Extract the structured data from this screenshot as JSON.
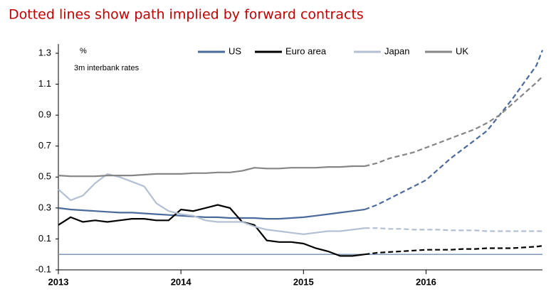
{
  "chart_data": {
    "type": "line",
    "title": "Dotted lines show path implied by forward contracts",
    "annotations": [
      "%",
      "3m interbank rates"
    ],
    "x": [
      2013.0,
      2013.1,
      2013.2,
      2013.3,
      2013.4,
      2013.5,
      2013.6,
      2013.7,
      2013.8,
      2013.9,
      2014.0,
      2014.1,
      2014.2,
      2014.3,
      2014.4,
      2014.5,
      2014.6,
      2014.7,
      2014.8,
      2014.9,
      2015.0,
      2015.1,
      2015.2,
      2015.3,
      2015.4,
      2015.5,
      2015.6,
      2015.7,
      2015.8,
      2015.9,
      2016.0,
      2016.1,
      2016.2,
      2016.3,
      2016.4,
      2016.5,
      2016.6,
      2016.7,
      2016.8,
      2016.9,
      2016.95
    ],
    "series": [
      {
        "name": "US",
        "color": "#4a6a9c",
        "values": [
          0.3,
          0.29,
          0.285,
          0.28,
          0.275,
          0.27,
          0.27,
          0.265,
          0.26,
          0.255,
          0.25,
          0.245,
          0.24,
          0.24,
          0.235,
          0.235,
          0.235,
          0.23,
          0.23,
          0.235,
          0.24,
          0.25,
          0.26,
          0.27,
          0.28,
          0.29,
          null,
          null,
          null,
          null,
          null,
          null,
          null,
          null,
          null,
          null,
          null,
          null,
          null,
          null,
          null
        ],
        "forward": [
          null,
          null,
          null,
          null,
          null,
          null,
          null,
          null,
          null,
          null,
          null,
          null,
          null,
          null,
          null,
          null,
          null,
          null,
          null,
          null,
          null,
          null,
          null,
          null,
          null,
          0.29,
          0.32,
          0.36,
          0.4,
          0.44,
          0.48,
          0.55,
          0.62,
          0.68,
          0.74,
          0.8,
          0.9,
          1.0,
          1.11,
          1.22,
          1.32
        ]
      },
      {
        "name": "Euro area",
        "color": "#000000",
        "values": [
          0.19,
          0.24,
          0.21,
          0.22,
          0.21,
          0.22,
          0.23,
          0.23,
          0.22,
          0.22,
          0.29,
          0.28,
          0.3,
          0.32,
          0.3,
          0.21,
          0.19,
          0.09,
          0.08,
          0.08,
          0.07,
          0.04,
          0.02,
          -0.01,
          -0.01,
          0.0,
          null,
          null,
          null,
          null,
          null,
          null,
          null,
          null,
          null,
          null,
          null,
          null,
          null,
          null,
          null
        ],
        "forward": [
          null,
          null,
          null,
          null,
          null,
          null,
          null,
          null,
          null,
          null,
          null,
          null,
          null,
          null,
          null,
          null,
          null,
          null,
          null,
          null,
          null,
          null,
          null,
          null,
          null,
          0.0,
          0.01,
          0.015,
          0.02,
          0.025,
          0.03,
          0.03,
          0.03,
          0.035,
          0.035,
          0.04,
          0.04,
          0.04,
          0.045,
          0.05,
          0.055
        ]
      },
      {
        "name": "Japan",
        "color": "#b3c0d4",
        "values": [
          0.42,
          0.35,
          0.38,
          0.46,
          0.52,
          0.5,
          0.47,
          0.44,
          0.33,
          0.28,
          0.26,
          0.25,
          0.22,
          0.21,
          0.21,
          0.21,
          0.18,
          0.16,
          0.15,
          0.14,
          0.13,
          0.14,
          0.15,
          0.15,
          0.16,
          0.17,
          null,
          null,
          null,
          null,
          null,
          null,
          null,
          null,
          null,
          null,
          null,
          null,
          null,
          null,
          null
        ],
        "forward": [
          null,
          null,
          null,
          null,
          null,
          null,
          null,
          null,
          null,
          null,
          null,
          null,
          null,
          null,
          null,
          null,
          null,
          null,
          null,
          null,
          null,
          null,
          null,
          null,
          null,
          0.17,
          0.17,
          0.165,
          0.165,
          0.16,
          0.16,
          0.16,
          0.155,
          0.155,
          0.155,
          0.15,
          0.15,
          0.15,
          0.15,
          0.15,
          0.15
        ]
      },
      {
        "name": "UK",
        "color": "#858585",
        "values": [
          0.51,
          0.505,
          0.505,
          0.505,
          0.51,
          0.51,
          0.51,
          0.515,
          0.52,
          0.52,
          0.52,
          0.525,
          0.525,
          0.53,
          0.53,
          0.54,
          0.56,
          0.555,
          0.555,
          0.56,
          0.56,
          0.56,
          0.565,
          0.565,
          0.57,
          0.57,
          null,
          null,
          null,
          null,
          null,
          null,
          null,
          null,
          null,
          null,
          null,
          null,
          null,
          null,
          null
        ],
        "forward": [
          null,
          null,
          null,
          null,
          null,
          null,
          null,
          null,
          null,
          null,
          null,
          null,
          null,
          null,
          null,
          null,
          null,
          null,
          null,
          null,
          null,
          null,
          null,
          null,
          null,
          0.57,
          0.59,
          0.62,
          0.64,
          0.66,
          0.69,
          0.72,
          0.75,
          0.78,
          0.81,
          0.85,
          0.9,
          0.97,
          1.04,
          1.11,
          1.15
        ]
      }
    ],
    "reference_line": 0,
    "reference_color": "#7f9bb5",
    "xlim": [
      2013,
      2016.95
    ],
    "xticks": [
      2013,
      2014,
      2015,
      2016
    ],
    "ylim": [
      -0.1,
      1.3
    ],
    "yticks": [
      -0.1,
      0.1,
      0.3,
      0.5,
      0.7,
      0.9,
      1.1,
      1.3
    ],
    "legend": "top"
  }
}
